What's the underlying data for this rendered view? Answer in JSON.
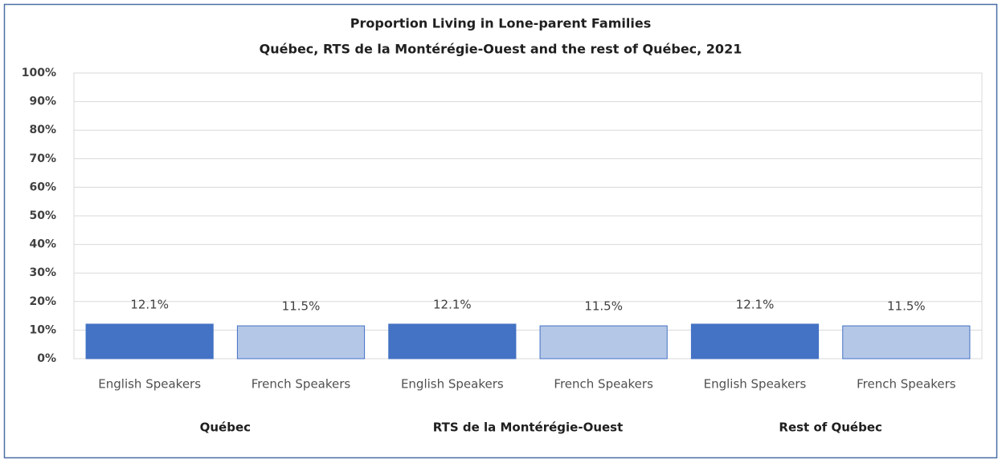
{
  "chart_data": {
    "type": "bar",
    "title": "Proportion Living in Lone-parent Families",
    "subtitle": "Québec, RTS de la Montérégie-Ouest and the rest of Québec, 2021",
    "categories": [
      "English Speakers",
      "French Speakers",
      "English Speakers",
      "French Speakers",
      "English Speakers",
      "French Speakers"
    ],
    "groups": [
      "Québec",
      "RTS de la Montérégie-Ouest",
      "Rest of Québec"
    ],
    "values": [
      12.1,
      11.5,
      12.1,
      11.5,
      12.1,
      11.5
    ],
    "value_labels": [
      "12.1%",
      "11.5%",
      "12.1%",
      "11.5%",
      "12.1%",
      "11.5%"
    ],
    "colors": [
      "#4472c4",
      "#b4c7e7",
      "#4472c4",
      "#b4c7e7",
      "#4472c4",
      "#b4c7e7"
    ],
    "ylim": [
      0,
      100
    ],
    "yticks": [
      {
        "value": 0,
        "label": "0%"
      },
      {
        "value": 10,
        "label": "10%"
      },
      {
        "value": 20,
        "label": "20%"
      },
      {
        "value": 30,
        "label": "30%"
      },
      {
        "value": 40,
        "label": "40%"
      },
      {
        "value": 50,
        "label": "50%"
      },
      {
        "value": 60,
        "label": "60%"
      },
      {
        "value": 70,
        "label": "70%"
      },
      {
        "value": 80,
        "label": "80%"
      },
      {
        "value": 90,
        "label": "90%"
      },
      {
        "value": 100,
        "label": "100%"
      }
    ],
    "grid": true
  }
}
